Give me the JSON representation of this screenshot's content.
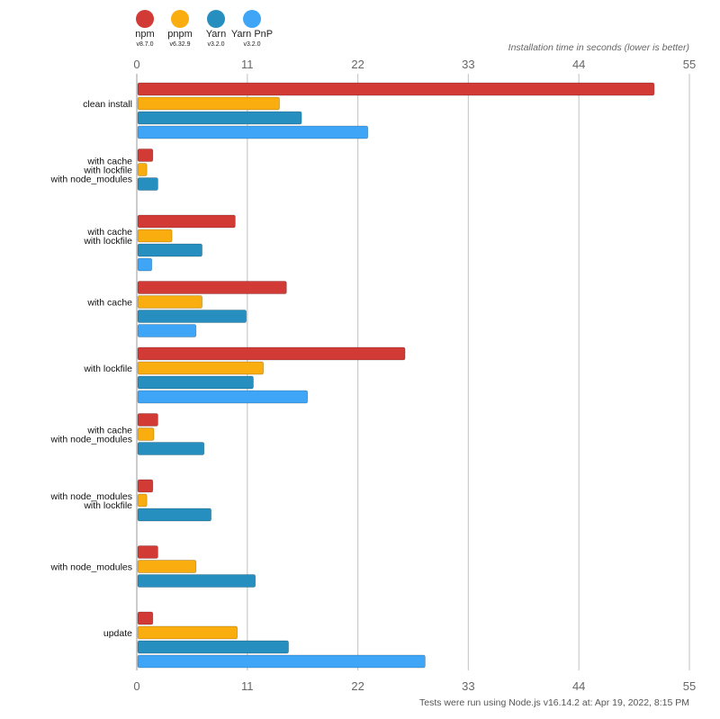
{
  "chart_data": {
    "type": "bar",
    "orientation": "horizontal",
    "title": "",
    "xlabel": "Installation time in seconds (lower is better)",
    "xlim": [
      0,
      55
    ],
    "xticks": [
      0,
      11,
      22,
      33,
      44,
      55
    ],
    "grid": true,
    "legend_position": "top-left",
    "categories": [
      "clean install",
      "with cache\nwith lockfile\nwith node_modules",
      "with cache\nwith lockfile",
      "with cache",
      "with lockfile",
      "with cache\nwith node_modules",
      "with node_modules\nwith lockfile",
      "with node_modules",
      "update"
    ],
    "series": [
      {
        "name": "npm",
        "version": "v8.7.0",
        "color": "#d13a35",
        "values": [
          51.5,
          1.6,
          9.8,
          14.9,
          26.7,
          2.1,
          1.6,
          2.1,
          1.6
        ]
      },
      {
        "name": "pnpm",
        "version": "v6.32.9",
        "color": "#f9ad0e",
        "values": [
          14.2,
          1.0,
          3.5,
          6.5,
          12.6,
          1.7,
          1.0,
          5.9,
          10.0
        ]
      },
      {
        "name": "Yarn",
        "version": "v3.2.0",
        "color": "#268fbf",
        "values": [
          16.4,
          2.1,
          6.5,
          10.9,
          11.6,
          6.7,
          7.4,
          11.8,
          15.1
        ]
      },
      {
        "name": "Yarn PnP",
        "version": "v3.2.0",
        "color": "#3fa6f7",
        "values": [
          23.0,
          null,
          1.5,
          5.9,
          17.0,
          null,
          null,
          null,
          28.7
        ]
      }
    ]
  },
  "footer": "Tests were run using Node.js v16.14.2 at: Apr 19, 2022, 8:15 PM"
}
